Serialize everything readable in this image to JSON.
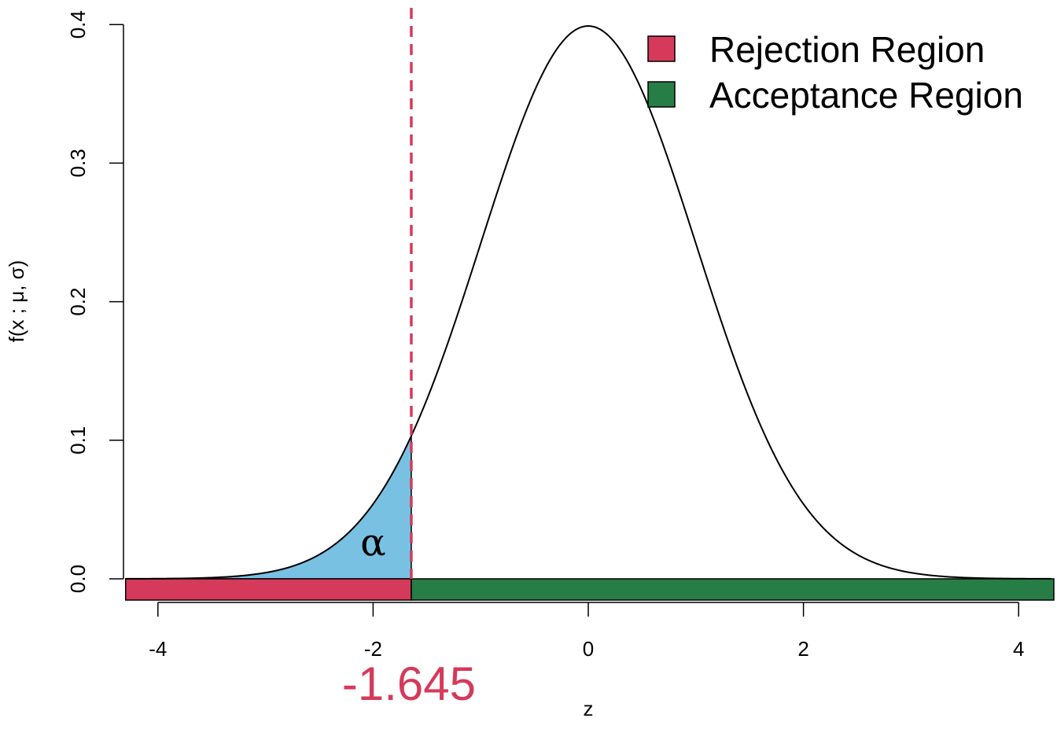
{
  "chart_data": {
    "type": "area",
    "distribution": "standard normal density",
    "mu": 0,
    "sigma": 1,
    "xlabel": "z",
    "ylabel": "f(x ; μ, σ)",
    "xlim": [
      -4.3,
      4.3
    ],
    "ylim": [
      0,
      0.4
    ],
    "x_ticks": [
      -4,
      -2,
      0,
      2,
      4
    ],
    "x_tick_labels": [
      "-4",
      "-2",
      "0",
      "2",
      "4"
    ],
    "y_ticks": [
      0.0,
      0.1,
      0.2,
      0.3,
      0.4
    ],
    "y_tick_labels": [
      "0.0",
      "0.1",
      "0.2",
      "0.3",
      "0.4"
    ],
    "critical_value": -1.645,
    "critical_label": "-1.645",
    "shaded_area_label": "α",
    "legend": {
      "position": "top-right",
      "entries": [
        {
          "label": "Rejection Region",
          "color": "#d63a5a"
        },
        {
          "label": "Acceptance Region",
          "color": "#267d46"
        }
      ]
    },
    "colors": {
      "curve": "#000000",
      "alpha_fill": "#78c1e3",
      "critical_line": "#d63a5a",
      "rejection": "#d63a5a",
      "acceptance": "#267d46"
    }
  }
}
